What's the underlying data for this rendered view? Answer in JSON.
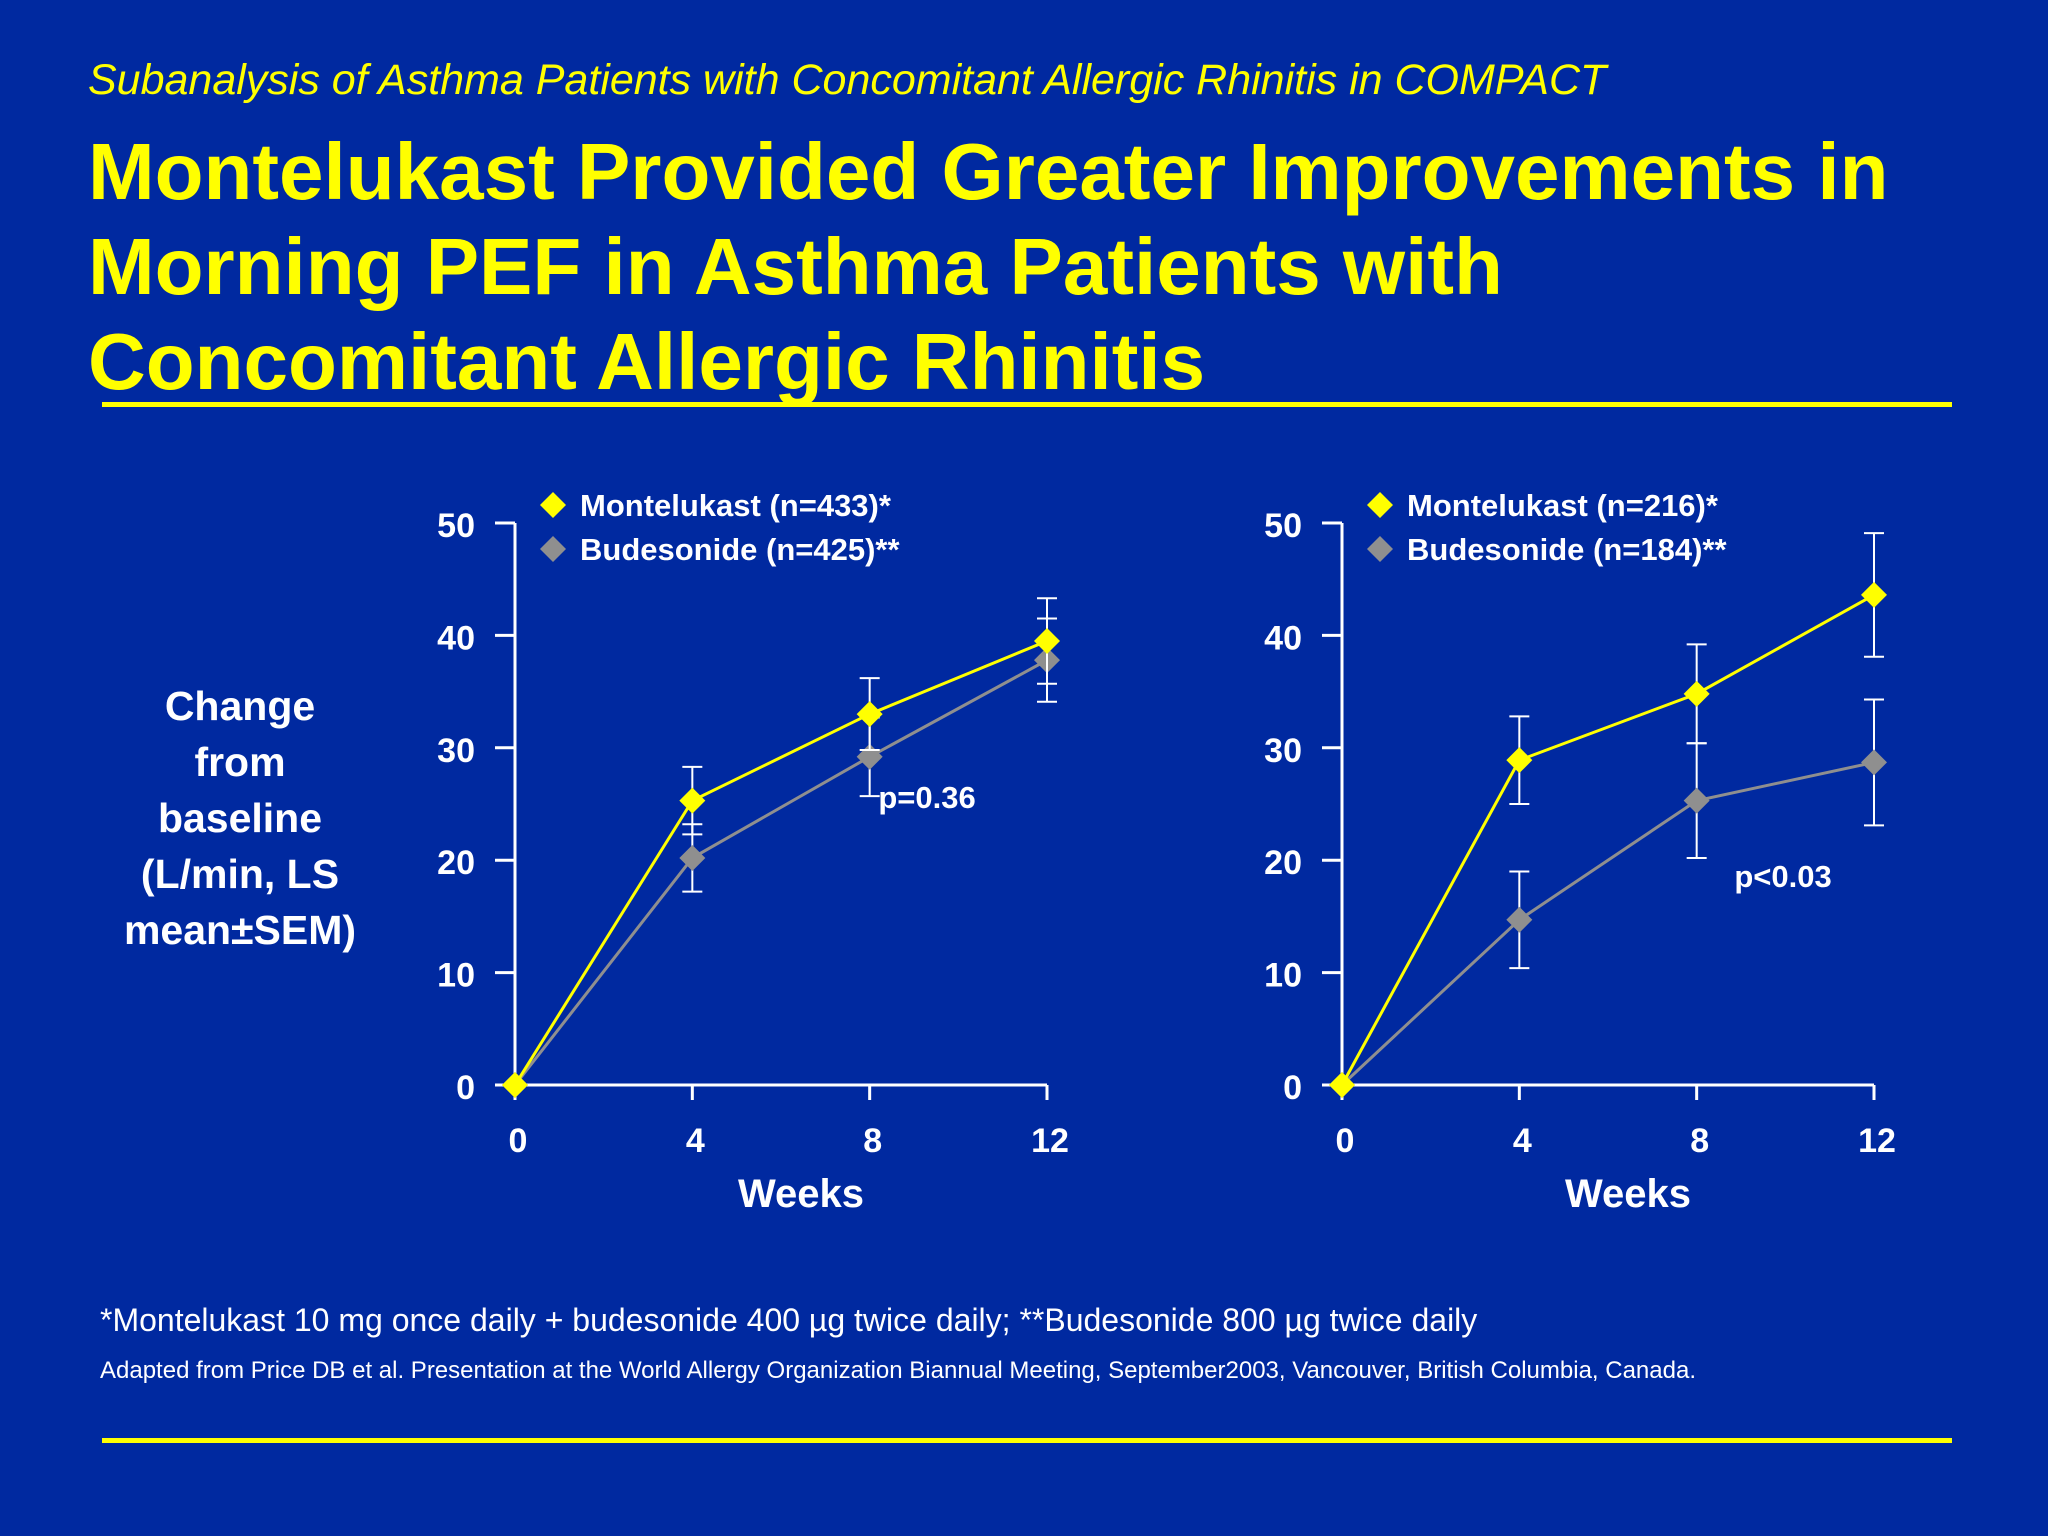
{
  "subtitle": "Subanalysis of Asthma Patients with Concomitant Allergic Rhinitis in COMPACT",
  "title": "Montelukast Provided Greater Improvements in Morning PEF in Asthma Patients with Concomitant Allergic Rhinitis",
  "ylabel_lines": [
    "Change",
    "from",
    "baseline",
    "(L/min, LS",
    "mean±SEM)"
  ],
  "footnote": "*Montelukast 10 mg once daily + budesonide 400 µg twice daily; **Budesonide 800 µg twice daily",
  "citation": "Adapted from Price DB et al. Presentation at the World Allergy Organization Biannual Meeting, September2003, Vancouver, British Columbia, Canada.",
  "colors": {
    "background": "#0029a0",
    "title": "#ffff00",
    "montelukast": "#ffff00",
    "budesonide": "#8f8f8f",
    "axes": "#ffffff"
  },
  "chart_data": [
    {
      "type": "line",
      "xlabel": "Weeks",
      "ylabel": "",
      "x": [
        0,
        4,
        8,
        12
      ],
      "xticks": [
        0,
        4,
        8,
        12
      ],
      "yticks": [
        0,
        10,
        20,
        30,
        40,
        50
      ],
      "xlim": [
        0,
        12
      ],
      "ylim": [
        0,
        50
      ],
      "legend": "top-left",
      "annotation": "p=0.36",
      "series": [
        {
          "name": "Montelukast (n=433)*",
          "color": "#ffff00",
          "values": [
            0,
            25.3,
            33,
            39.5
          ],
          "sem": [
            0,
            3,
            3.2,
            3.8
          ]
        },
        {
          "name": "Budesonide (n=425)**",
          "color": "#8f8f8f",
          "values": [
            0,
            20.2,
            29.2,
            37.8
          ],
          "sem": [
            0,
            3,
            3.5,
            3.7
          ]
        }
      ]
    },
    {
      "type": "line",
      "xlabel": "Weeks",
      "ylabel": "",
      "x": [
        0,
        4,
        8,
        12
      ],
      "xticks": [
        0,
        4,
        8,
        12
      ],
      "yticks": [
        0,
        10,
        20,
        30,
        40,
        50
      ],
      "xlim": [
        0,
        12
      ],
      "ylim": [
        0,
        50
      ],
      "legend": "top-left",
      "annotation": "p<0.03",
      "series": [
        {
          "name": "Montelukast (n=216)*",
          "color": "#ffff00",
          "values": [
            0,
            28.9,
            34.8,
            43.6
          ],
          "sem": [
            0,
            3.9,
            4.4,
            5.5
          ]
        },
        {
          "name": "Budesonide (n=184)**",
          "color": "#8f8f8f",
          "values": [
            0,
            14.7,
            25.3,
            28.7
          ],
          "sem": [
            0,
            4.3,
            5.1,
            5.6
          ]
        }
      ]
    }
  ]
}
